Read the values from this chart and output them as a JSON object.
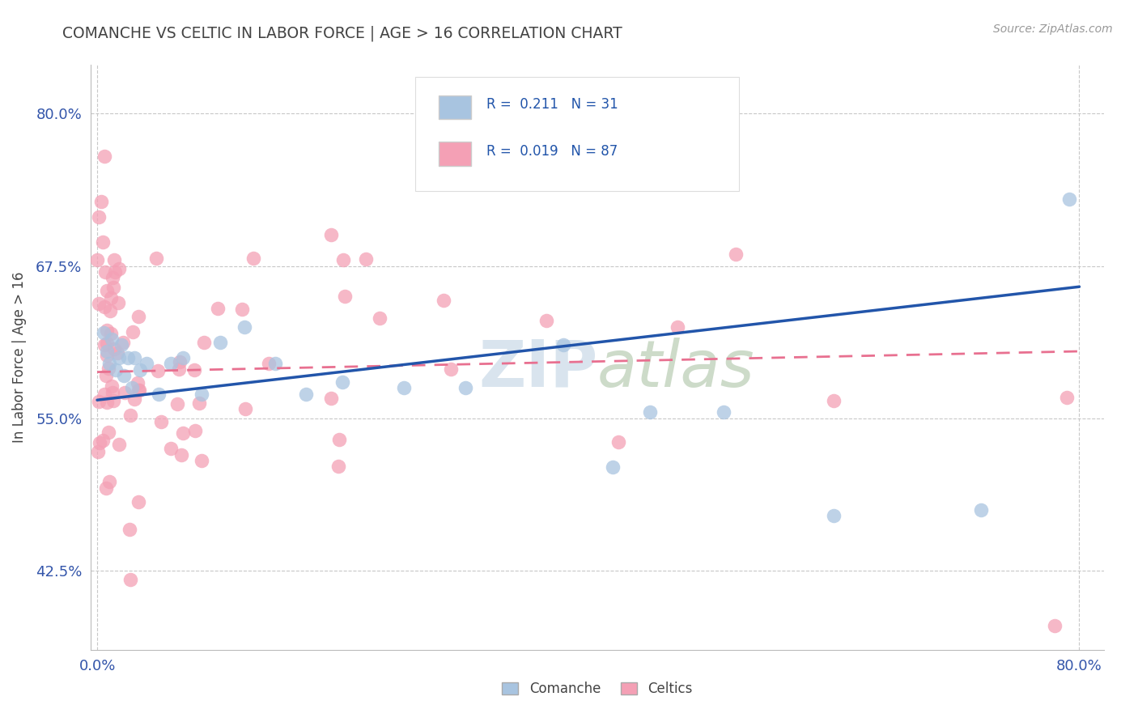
{
  "title": "COMANCHE VS CELTIC IN LABOR FORCE | AGE > 16 CORRELATION CHART",
  "source_text": "Source: ZipAtlas.com",
  "ylabel": "In Labor Force | Age > 16",
  "xlabel": "",
  "xlim": [
    -0.005,
    0.82
  ],
  "ylim": [
    0.36,
    0.84
  ],
  "xtick_labels": [
    "0.0%",
    "80.0%"
  ],
  "ytick_labels": [
    "42.5%",
    "55.0%",
    "67.5%",
    "80.0%"
  ],
  "ytick_vals": [
    0.425,
    0.55,
    0.675,
    0.8
  ],
  "xtick_vals": [
    0.0,
    0.8
  ],
  "grid_color": "#c8c8c8",
  "comanche_color": "#a8c4e0",
  "celtic_color": "#f4a0b5",
  "comanche_line_color": "#2255aa",
  "celtic_line_color": "#e87090",
  "comanche_R": "0.211",
  "comanche_N": "31",
  "celtic_R": "0.019",
  "celtic_N": "87",
  "legend_label_comanche": "Comanche",
  "legend_label_celtic": "Celtics",
  "title_color": "#444444",
  "source_color": "#888888",
  "tick_color": "#3355aa",
  "ylabel_color": "#444444",
  "comanche_line_start": 0.565,
  "comanche_line_end": 0.658,
  "celtic_line_start": 0.588,
  "celtic_line_end": 0.605,
  "watermark_zip_color": "#d0dce8",
  "watermark_atlas_color": "#c8d4c0"
}
